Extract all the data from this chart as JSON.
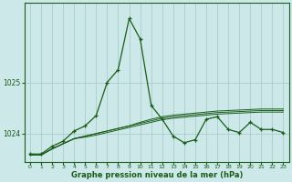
{
  "xlabel_label": "Graphe pression niveau de la mer (hPa)",
  "bg_color": "#cce8e8",
  "grid_color": "#aacccc",
  "line_color": "#1a5c1a",
  "x_ticks": [
    0,
    1,
    2,
    3,
    4,
    5,
    6,
    7,
    8,
    9,
    10,
    11,
    12,
    13,
    14,
    15,
    16,
    17,
    18,
    19,
    20,
    21,
    22,
    23
  ],
  "ylim": [
    1023.45,
    1026.55
  ],
  "yticks": [
    1024,
    1025
  ],
  "series_main": [
    1023.6,
    1023.6,
    1023.75,
    1023.85,
    1024.05,
    1024.15,
    1024.35,
    1025.0,
    1025.25,
    1026.25,
    1025.85,
    1024.55,
    1024.28,
    1023.95,
    1023.82,
    1023.88,
    1024.28,
    1024.33,
    1024.08,
    1024.02,
    1024.22,
    1024.08,
    1024.08,
    1024.02
  ],
  "series_l2": [
    1023.58,
    1023.58,
    1023.7,
    1023.8,
    1023.9,
    1023.95,
    1024.0,
    1024.05,
    1024.1,
    1024.15,
    1024.22,
    1024.28,
    1024.33,
    1024.36,
    1024.38,
    1024.4,
    1024.42,
    1024.44,
    1024.45,
    1024.46,
    1024.47,
    1024.48,
    1024.48,
    1024.48
  ],
  "series_l3": [
    1023.58,
    1023.58,
    1023.7,
    1023.8,
    1023.9,
    1023.95,
    1024.0,
    1024.05,
    1024.1,
    1024.15,
    1024.2,
    1024.25,
    1024.3,
    1024.33,
    1024.35,
    1024.37,
    1024.39,
    1024.41,
    1024.42,
    1024.43,
    1024.44,
    1024.45,
    1024.45,
    1024.45
  ],
  "series_l4": [
    1023.58,
    1023.58,
    1023.7,
    1023.8,
    1023.9,
    1023.93,
    1023.97,
    1024.02,
    1024.07,
    1024.12,
    1024.17,
    1024.22,
    1024.27,
    1024.3,
    1024.32,
    1024.34,
    1024.36,
    1024.38,
    1024.39,
    1024.4,
    1024.41,
    1024.42,
    1024.42,
    1024.42
  ]
}
